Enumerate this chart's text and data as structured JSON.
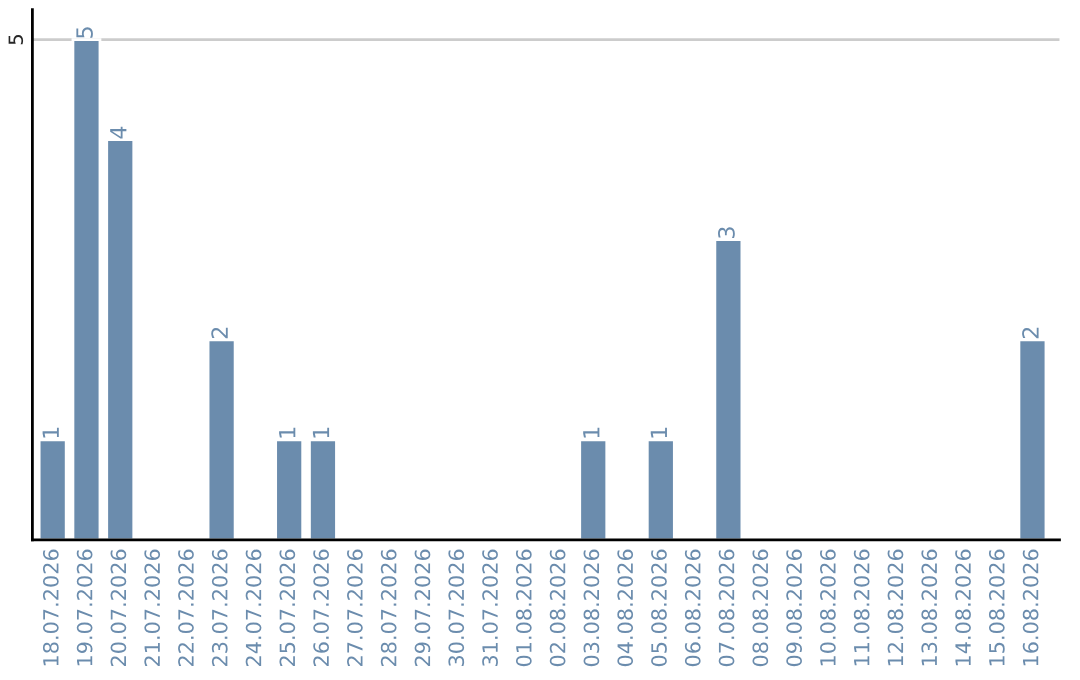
{
  "chart_data": {
    "type": "bar",
    "categories": [
      "18.07.2026",
      "19.07.2026",
      "20.07.2026",
      "21.07.2026",
      "22.07.2026",
      "23.07.2026",
      "24.07.2026",
      "25.07.2026",
      "26.07.2026",
      "27.07.2026",
      "28.07.2026",
      "29.07.2026",
      "30.07.2026",
      "31.07.2026",
      "01.08.2026",
      "02.08.2026",
      "03.08.2026",
      "04.08.2026",
      "05.08.2026",
      "06.08.2026",
      "07.08.2026",
      "08.08.2026",
      "09.08.2026",
      "10.08.2026",
      "11.08.2026",
      "12.08.2026",
      "13.08.2026",
      "14.08.2026",
      "15.08.2026",
      "16.08.2026"
    ],
    "values": [
      1,
      5,
      4,
      null,
      null,
      2,
      null,
      1,
      1,
      null,
      null,
      null,
      null,
      null,
      null,
      null,
      1,
      null,
      1,
      null,
      3,
      null,
      null,
      null,
      null,
      null,
      null,
      null,
      null,
      2
    ],
    "value_labels": [
      "1",
      "5",
      "4",
      null,
      null,
      "2",
      null,
      "1",
      "1",
      null,
      null,
      null,
      null,
      null,
      null,
      null,
      "1",
      null,
      "1",
      null,
      "3",
      null,
      null,
      null,
      null,
      null,
      null,
      null,
      null,
      "2"
    ],
    "color": "#6b8cad",
    "ylim": [
      0,
      5.3
    ],
    "yticks": [
      5
    ],
    "grid": "y"
  }
}
